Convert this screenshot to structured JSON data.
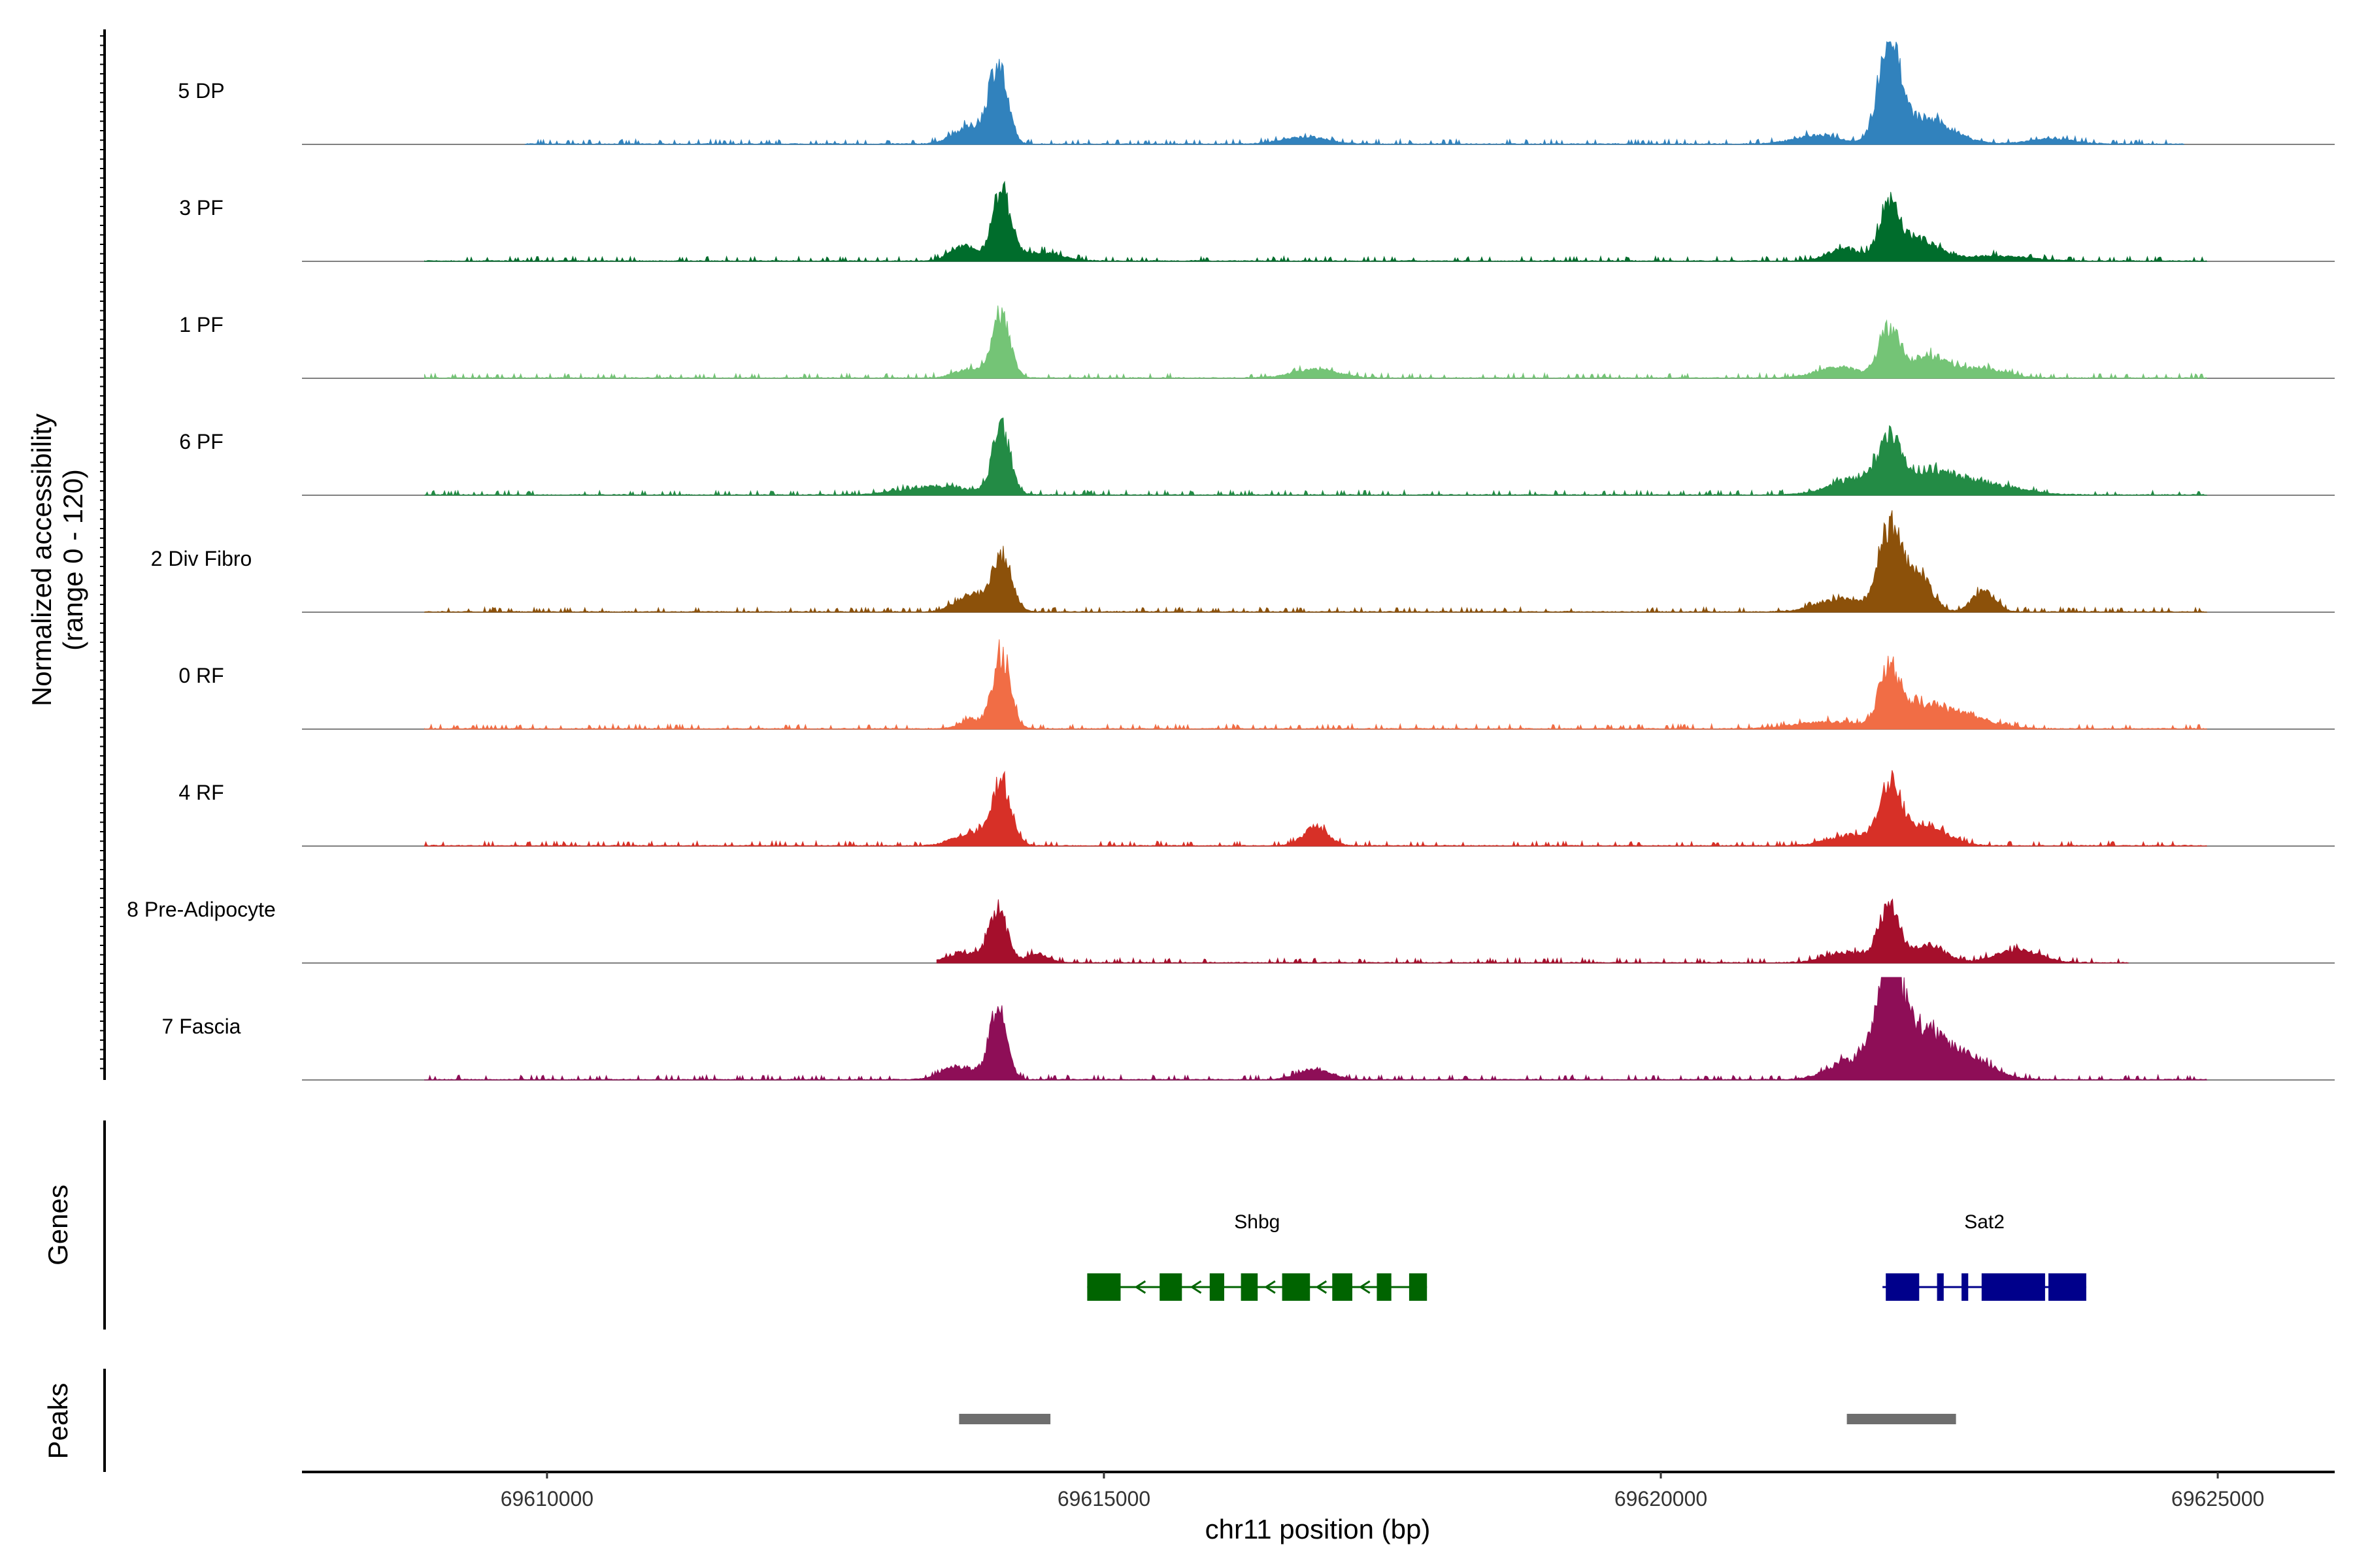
{
  "chart_data": {
    "type": "area",
    "title": "",
    "ylabel": "Normalized accessibility",
    "ylabel_range": "(range 0 - 120)",
    "ylim": [
      0,
      120
    ],
    "xlabel": "chr11 position (bp)",
    "xlim": [
      69607800,
      69626050
    ],
    "xticks": [
      69610000,
      69615000,
      69620000,
      69625000
    ],
    "xtick_labels": [
      "69610000",
      "69615000",
      "69620000",
      "69625000"
    ],
    "tracks": [
      {
        "name": "5 DP",
        "color": "#3182BD",
        "start": 69609800,
        "end": 69624700,
        "peaks": [
          [
            69613800,
            20,
            150
          ],
          [
            69614050,
            90,
            80
          ],
          [
            69616800,
            8,
            200
          ],
          [
            69621400,
            10,
            200
          ],
          [
            69622050,
            120,
            90
          ],
          [
            69622350,
            30,
            250
          ],
          [
            69623500,
            6,
            200
          ]
        ]
      },
      {
        "name": "3 PF",
        "color": "#006D2C",
        "start": 69608900,
        "end": 69624900,
        "peaks": [
          [
            69613750,
            16,
            130
          ],
          [
            69614080,
            80,
            80
          ],
          [
            69614400,
            10,
            200
          ],
          [
            69621650,
            14,
            150
          ],
          [
            69622050,
            60,
            90
          ],
          [
            69622300,
            25,
            180
          ],
          [
            69623000,
            6,
            300
          ]
        ]
      },
      {
        "name": "1 PF",
        "color": "#74C476",
        "start": 69608900,
        "end": 69624900,
        "peaks": [
          [
            69613800,
            10,
            130
          ],
          [
            69614080,
            75,
            80
          ],
          [
            69616900,
            10,
            200
          ],
          [
            69621600,
            12,
            200
          ],
          [
            69622050,
            55,
            90
          ],
          [
            69622400,
            25,
            180
          ],
          [
            69622900,
            10,
            200
          ]
        ]
      },
      {
        "name": "6 PF",
        "color": "#238B45",
        "start": 69608900,
        "end": 69624900,
        "peaks": [
          [
            69613500,
            10,
            300
          ],
          [
            69614080,
            75,
            80
          ],
          [
            69621800,
            20,
            250
          ],
          [
            69622050,
            55,
            90
          ],
          [
            69622400,
            25,
            250
          ],
          [
            69622900,
            12,
            300
          ]
        ]
      },
      {
        "name": "2 Div Fibro",
        "color": "#8C510A",
        "start": 69608900,
        "end": 69624900,
        "peaks": [
          [
            69613800,
            20,
            130
          ],
          [
            69614080,
            65,
            90
          ],
          [
            69621600,
            15,
            200
          ],
          [
            69622050,
            95,
            100
          ],
          [
            69622300,
            45,
            120
          ],
          [
            69622900,
            25,
            100
          ]
        ]
      },
      {
        "name": "0 RF",
        "color": "#F16D45",
        "start": 69608900,
        "end": 69624900,
        "peaks": [
          [
            69613800,
            10,
            100
          ],
          [
            69614080,
            85,
            80
          ],
          [
            69621500,
            8,
            300
          ],
          [
            69622050,
            60,
            90
          ],
          [
            69622300,
            25,
            200
          ],
          [
            69622700,
            15,
            250
          ]
        ]
      },
      {
        "name": "4 RF",
        "color": "#D73027",
        "start": 69608900,
        "end": 69624900,
        "peaks": [
          [
            69613800,
            15,
            150
          ],
          [
            69614080,
            70,
            90
          ],
          [
            69616900,
            22,
            110
          ],
          [
            69621700,
            12,
            200
          ],
          [
            69622050,
            65,
            90
          ],
          [
            69622350,
            25,
            200
          ]
        ]
      },
      {
        "name": "8 Pre-Adipocyte",
        "color": "#A50F2C",
        "start": 69613500,
        "end": 69624200,
        "peaks": [
          [
            69613750,
            12,
            150
          ],
          [
            69614050,
            60,
            80
          ],
          [
            69614400,
            10,
            100
          ],
          [
            69621700,
            12,
            200
          ],
          [
            69622050,
            65,
            90
          ],
          [
            69622400,
            20,
            150
          ],
          [
            69623200,
            15,
            200
          ]
        ]
      },
      {
        "name": "7 Fascia",
        "color": "#8E0E57",
        "start": 69608900,
        "end": 69624900,
        "peaks": [
          [
            69613700,
            15,
            150
          ],
          [
            69614050,
            80,
            80
          ],
          [
            69616900,
            12,
            150
          ],
          [
            69621700,
            20,
            200
          ],
          [
            69622050,
            120,
            100
          ],
          [
            69622300,
            60,
            250
          ],
          [
            69622800,
            20,
            200
          ]
        ]
      }
    ],
    "genes_track_label": "Genes",
    "genes": [
      {
        "name": "Shbg",
        "strand": "-",
        "color": "#006400",
        "start": 69614850,
        "end": 69617900,
        "exons": [
          [
            69614850,
            69615150
          ],
          [
            69615500,
            69615700
          ],
          [
            69615950,
            69616080
          ],
          [
            69616230,
            69616380
          ],
          [
            69616600,
            69616850
          ],
          [
            69617050,
            69617230
          ],
          [
            69617450,
            69617580
          ],
          [
            69617740,
            69617900
          ]
        ]
      },
      {
        "name": "Sat2",
        "strand": "-",
        "color": "#00008B",
        "start": 69621990,
        "end": 69623820,
        "exons": [
          [
            69622020,
            69622320
          ],
          [
            69622480,
            69622540
          ],
          [
            69622700,
            69622760
          ],
          [
            69622880,
            69623450
          ],
          [
            69623480,
            69623820
          ]
        ]
      }
    ],
    "peaks_track_label": "Peaks",
    "peak_regions": [
      [
        69613700,
        69614520
      ],
      [
        69621670,
        69622650
      ]
    ]
  }
}
